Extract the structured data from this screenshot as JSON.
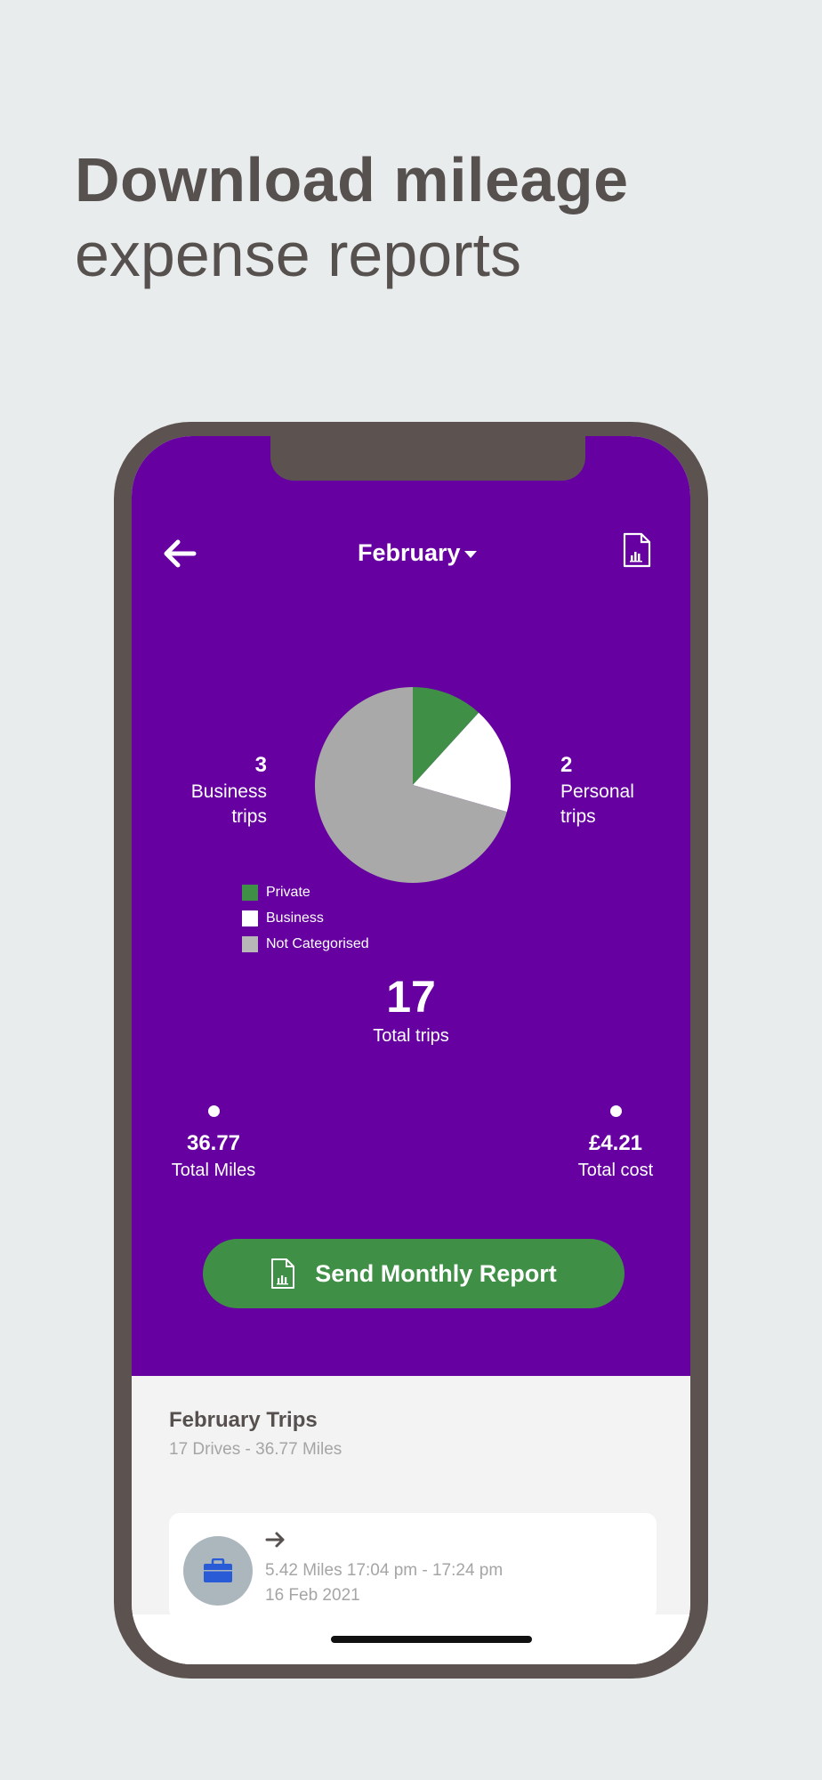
{
  "headline": {
    "bold": "Download mileage",
    "light": "expense reports"
  },
  "header": {
    "back_icon": "arrow-left-icon",
    "month": "February",
    "report_icon": "report-document-icon"
  },
  "chart_data": {
    "type": "pie",
    "slices": [
      {
        "label": "Private",
        "value": 2,
        "color": "#3f8f47"
      },
      {
        "label": "Business",
        "value": 3,
        "color": "#ffffff"
      },
      {
        "label": "Not Categorised",
        "value": 12,
        "color": "#a9a9a9"
      }
    ],
    "legend": [
      "Private",
      "Business",
      "Not Categorised"
    ]
  },
  "stats": {
    "business": {
      "count": "3",
      "label_line1": "Business",
      "label_line2": "trips"
    },
    "personal": {
      "count": "2",
      "label_line1": "Personal",
      "label_line2": "trips"
    },
    "total_trips": "17",
    "total_trips_label": "Total trips",
    "total_miles": "36.77",
    "total_miles_label": "Total Miles",
    "total_cost": "£4.21",
    "total_cost_label": "Total cost"
  },
  "send_button": "Send Monthly Report",
  "trips": {
    "title": "February Trips",
    "subtitle": "17 Drives - 36.77 Miles",
    "items": [
      {
        "icon": "briefcase-icon",
        "details": "5.42 Miles 17:04 pm - 17:24 pm",
        "date": "16 Feb 2021"
      }
    ]
  },
  "colors": {
    "purple": "#6600a1",
    "green": "#3f8f47",
    "grey_slice": "#a9a9a9",
    "frame": "#5c5351",
    "briefcase": "#2a5bd7"
  }
}
